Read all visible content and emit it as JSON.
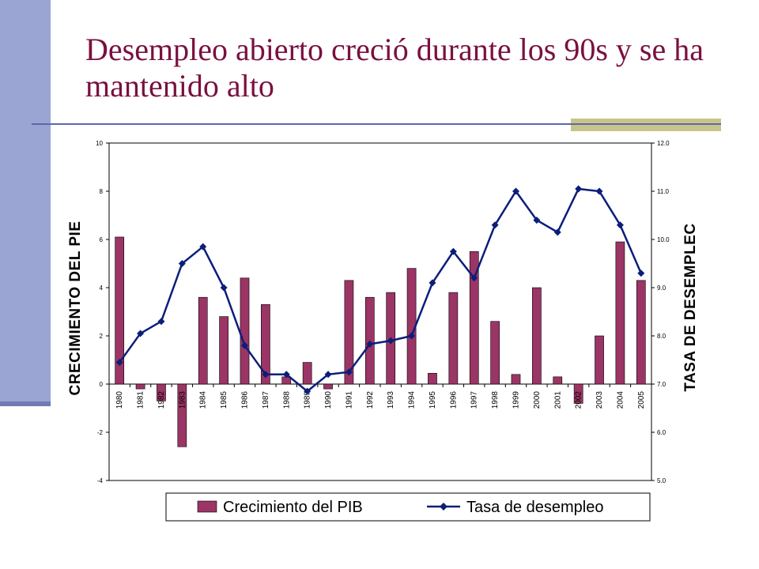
{
  "slide": {
    "title": "Desempleo abierto creció durante los 90s y se ha mantenido alto"
  },
  "colors": {
    "title": "#7a1040",
    "bar": "#9b3565",
    "line": "#0b1e7a",
    "side_bar": "#9aa5d3",
    "rule": "#5b6aa8",
    "rule_accent": "#c7c58a"
  },
  "chart_data": {
    "type": "bar+line",
    "categories": [
      "1980",
      "1981",
      "1982",
      "1983",
      "1984",
      "1985",
      "1986",
      "1987",
      "1988",
      "1989",
      "1990",
      "1991",
      "1992",
      "1993",
      "1994",
      "1995",
      "1996",
      "1997",
      "1998",
      "1999",
      "2000",
      "2001",
      "2002",
      "2003",
      "2004",
      "2005"
    ],
    "series": [
      {
        "name": "Crecimiento del PIB",
        "type": "bar",
        "axis": "left",
        "values": [
          6.1,
          -0.2,
          -0.7,
          -2.6,
          3.6,
          2.8,
          4.4,
          3.3,
          0.3,
          0.9,
          -0.2,
          4.3,
          3.6,
          3.8,
          4.8,
          0.45,
          3.8,
          5.5,
          2.6,
          0.4,
          4.0,
          0.3,
          -0.8,
          2.0,
          5.9,
          4.3
        ]
      },
      {
        "name": "Tasa de desempleo",
        "type": "line",
        "axis": "right",
        "values": [
          7.45,
          8.05,
          8.3,
          9.5,
          9.85,
          9.0,
          7.8,
          7.2,
          7.2,
          6.85,
          7.2,
          7.25,
          7.83,
          7.9,
          8.0,
          9.1,
          9.75,
          9.2,
          10.3,
          11.0,
          10.4,
          10.15,
          11.05,
          11.0,
          10.3,
          9.3
        ]
      }
    ],
    "y_left": {
      "label": "CRECIMIENTO DEL PIE",
      "min": -4,
      "max": 10,
      "ticks": [
        "-4",
        "-2",
        "0",
        "2",
        "4",
        "6",
        "8",
        "10"
      ]
    },
    "y_right": {
      "label": "TASA DE DESEMPLEC",
      "min": 5.0,
      "max": 12.0,
      "ticks": [
        "5.0",
        "6.0",
        "7.0",
        "8.0",
        "9.0",
        "10.0",
        "11.0",
        "12.0"
      ]
    },
    "legend": {
      "position": "bottom",
      "entries": [
        "Crecimiento del PIB",
        "Tasa de desempleo"
      ]
    },
    "grid": false
  }
}
